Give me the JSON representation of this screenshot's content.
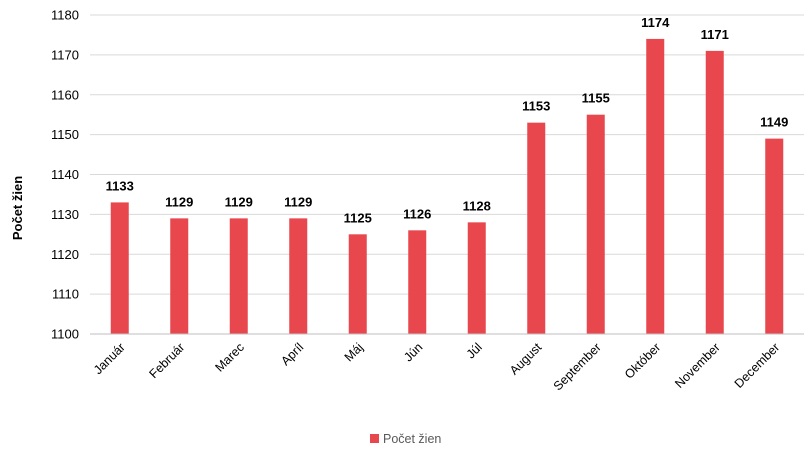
{
  "chart_data": {
    "type": "bar",
    "title": "",
    "xlabel": "",
    "ylabel": "Počet žien",
    "categories": [
      "Január",
      "Február",
      "Marec",
      "Apríl",
      "Máj",
      "Jún",
      "Júl",
      "August",
      "September",
      "Október",
      "November",
      "December"
    ],
    "series": [
      {
        "name": "Počet žien",
        "values": [
          1133,
          1129,
          1129,
          1129,
          1125,
          1126,
          1128,
          1153,
          1155,
          1174,
          1171,
          1149
        ]
      }
    ],
    "data_labels": [
      "1133",
      "1129",
      "1129",
      "1129",
      "1125",
      "1126",
      "1128",
      "1153",
      "1155",
      "1174",
      "1171",
      "1149"
    ],
    "y_ticks": [
      "1100",
      "1110",
      "1120",
      "1130",
      "1140",
      "1150",
      "1160",
      "1170",
      "1180"
    ],
    "ylim": [
      1100,
      1180
    ],
    "grid": true,
    "legend_position": "bottom",
    "colors": {
      "bar": "#e8474d",
      "grid": "#d9d9d9",
      "axis": "#bfbfbf"
    }
  }
}
